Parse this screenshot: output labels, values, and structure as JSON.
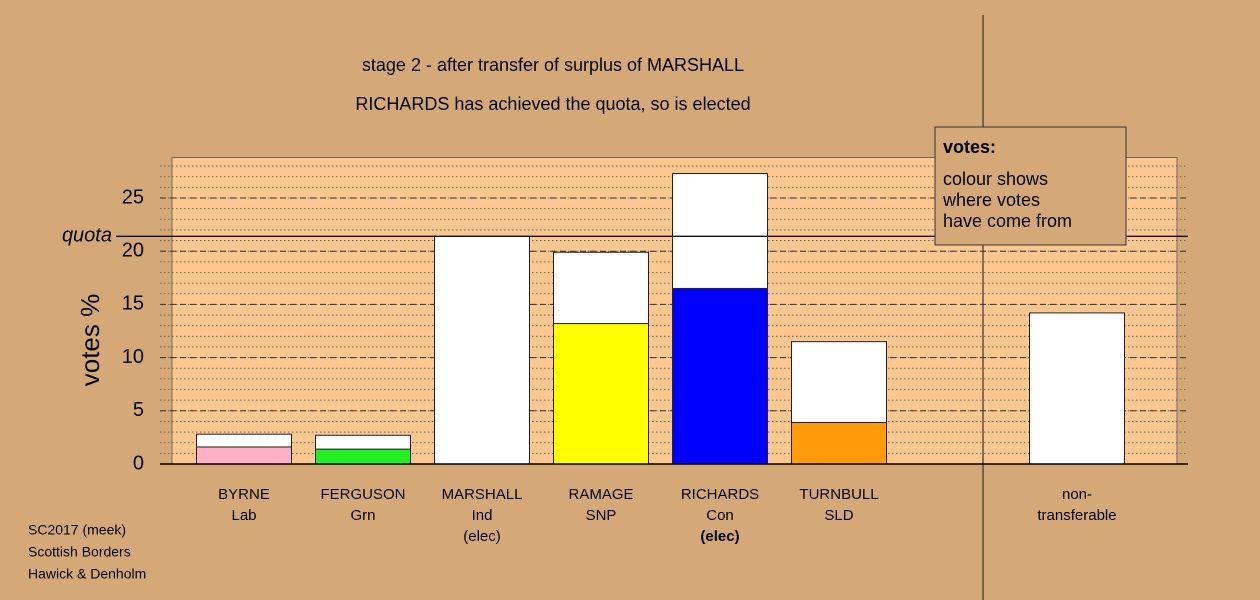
{
  "chart_data": {
    "type": "stacked_bar",
    "title": "stage 2 - after transfer of surplus of MARSHALL",
    "subtitle": "RICHARDS has achieved the quota, so is elected",
    "y_label": "votes %",
    "categories": [
      [
        "BYRNE",
        "Lab"
      ],
      [
        "FERGUSON",
        "Grn"
      ],
      [
        "MARSHALL",
        "Ind",
        "(elec)"
      ],
      [
        "RAMAGE",
        "SNP"
      ],
      [
        "RICHARDS",
        "Con",
        "(elec)"
      ],
      [
        "TURNBULL",
        "SLD"
      ],
      null,
      [
        "non-",
        "transferable"
      ]
    ],
    "highlight_category": 4,
    "series": [
      {
        "colors": [
          "#ffb0c8",
          "#22ee22",
          null,
          "#ffff00",
          "#0000ff",
          "#ff9a0a",
          null,
          null
        ],
        "values": [
          1.6,
          1.4,
          null,
          13.2,
          16.5,
          3.9,
          null,
          null
        ]
      },
      {
        "color": "#ffffff",
        "values": [
          1.2,
          1.3,
          21.4,
          6.7,
          10.8,
          7.6,
          null,
          14.2
        ]
      }
    ],
    "quota": 21.4,
    "quota_label": "quota",
    "ylim": [
      0,
      28.8
    ],
    "yticks": [
      0,
      5,
      10,
      15,
      20,
      25
    ],
    "minor_grid_step": 1,
    "grid": true,
    "plot_color": "#fdc78f",
    "legend_box": {
      "title": "votes:",
      "lines": [
        "colour shows",
        "where votes",
        "have come from"
      ]
    },
    "footer": [
      "SC2017 (meek)",
      "Scottish Borders",
      "Hawick & Denholm"
    ]
  }
}
